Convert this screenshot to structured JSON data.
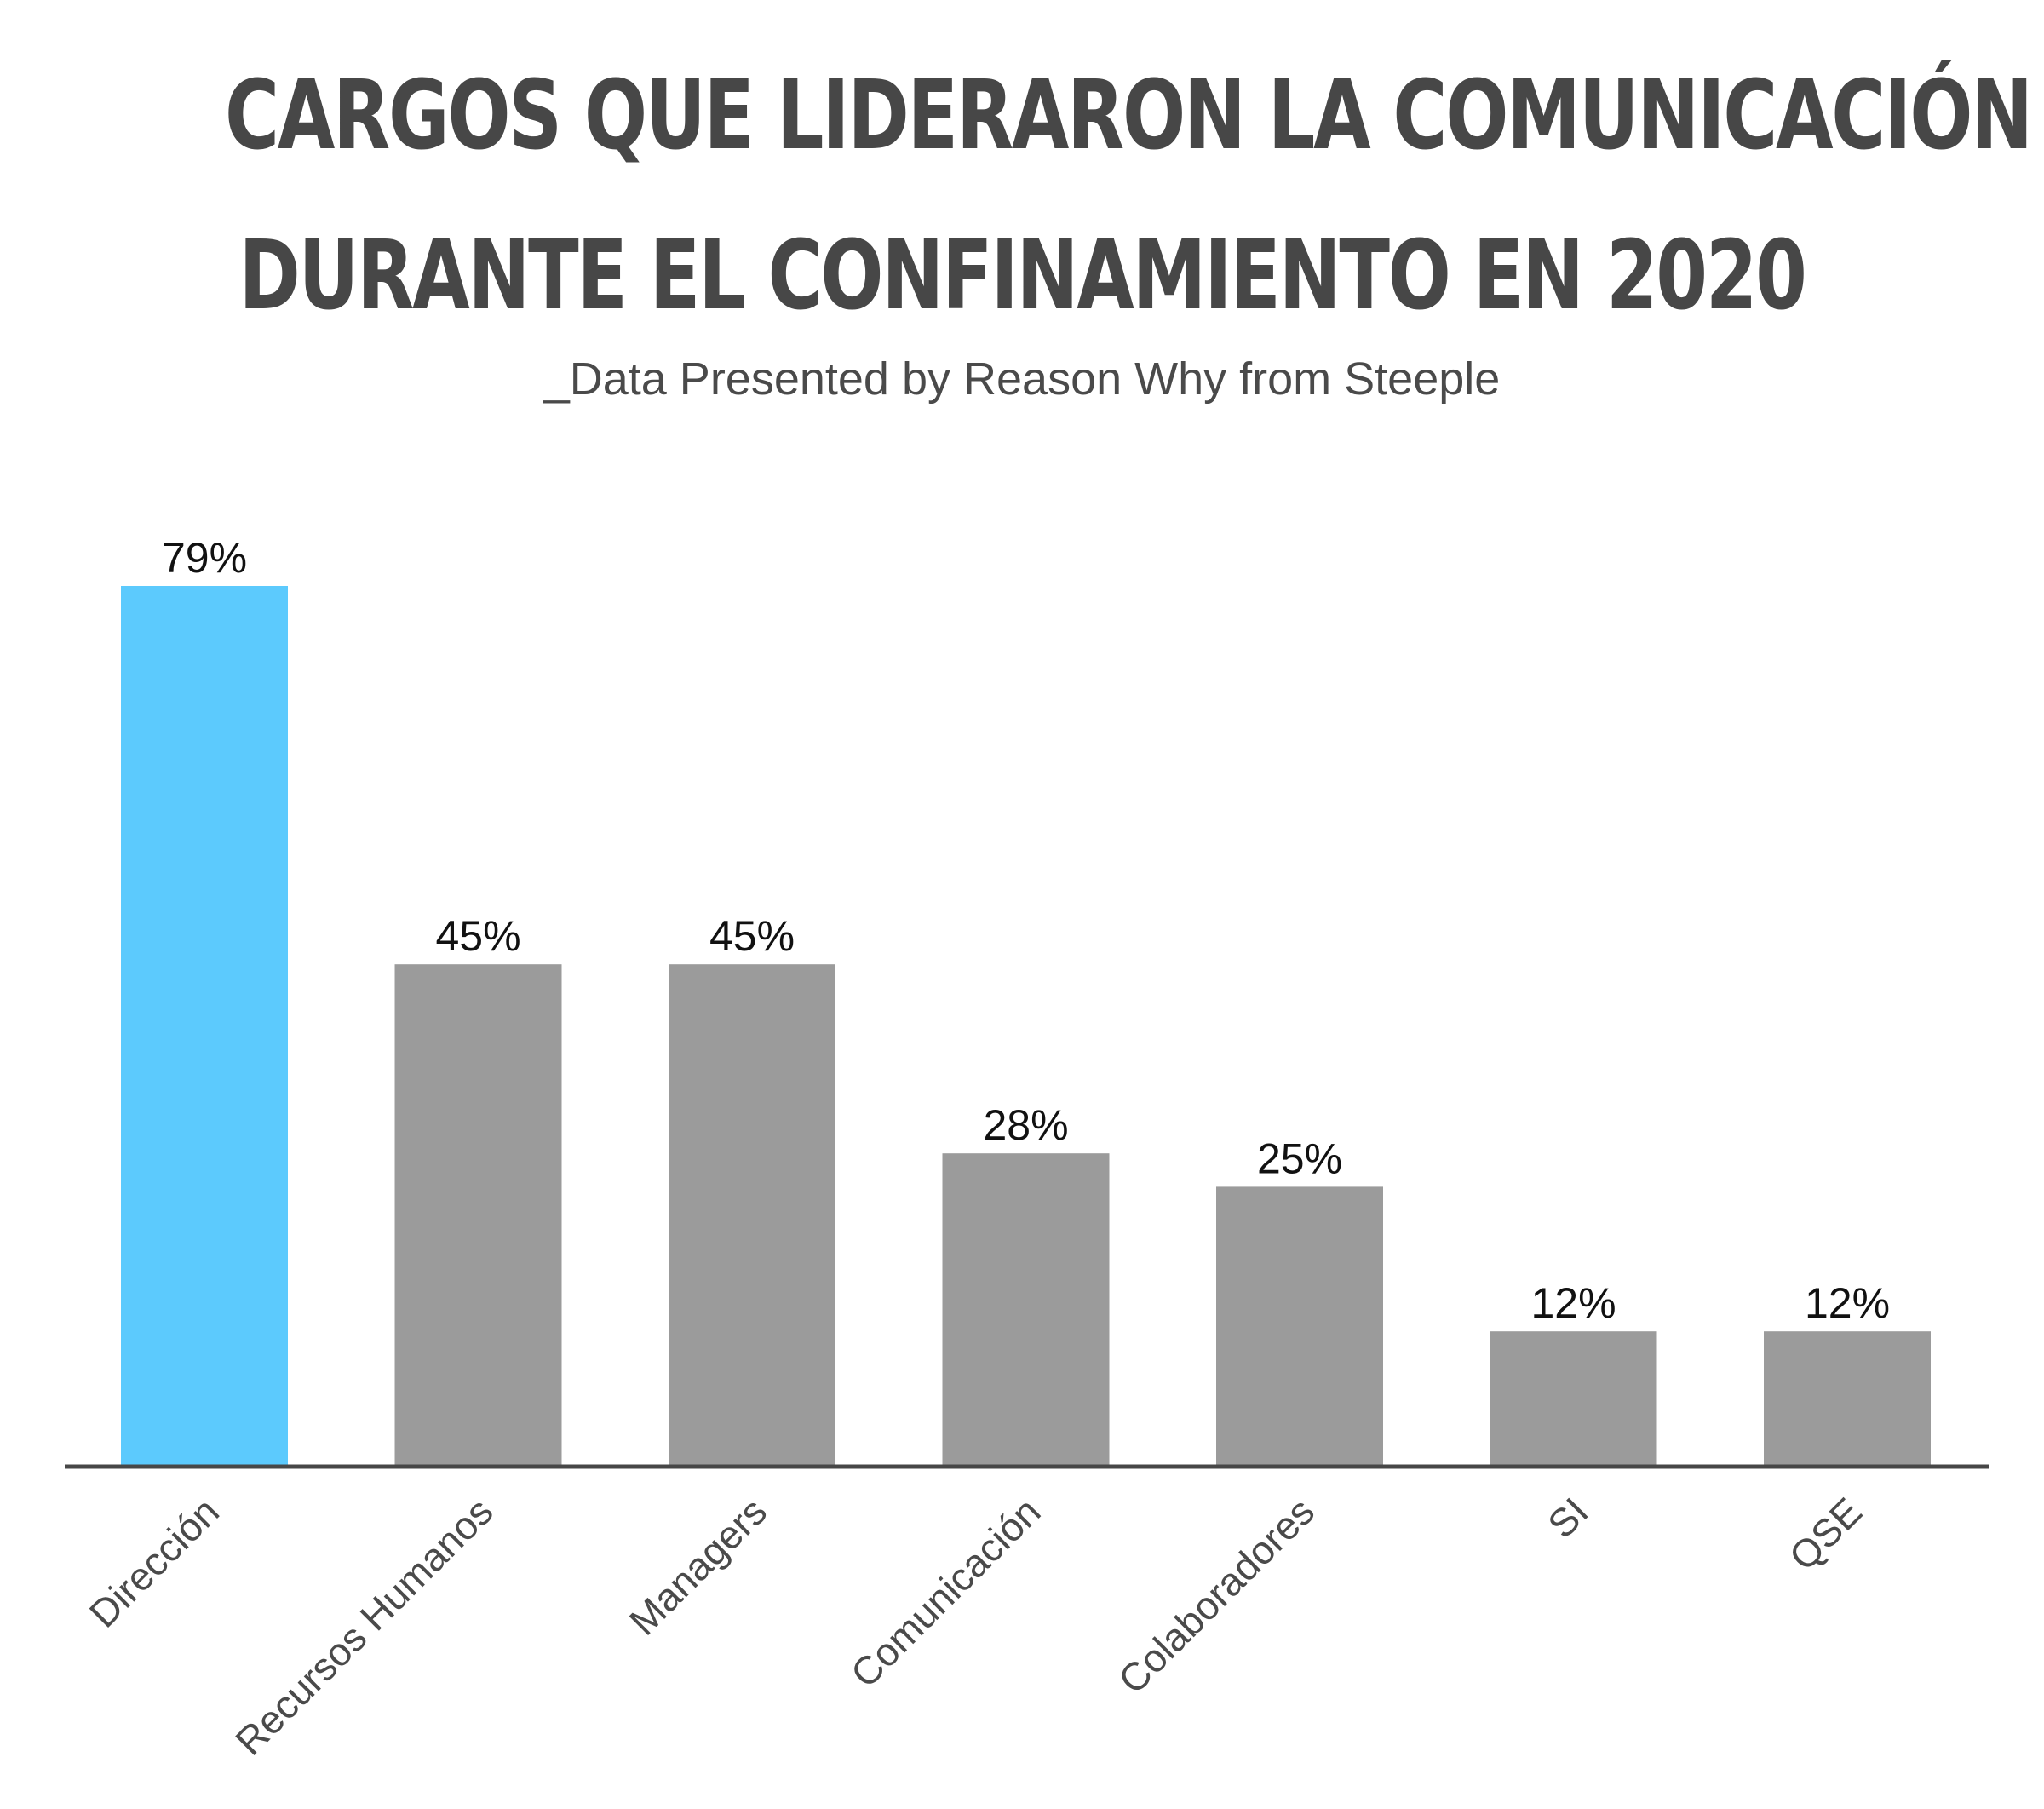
{
  "header": {
    "title_line_1": "CARGOS QUE LIDERARON LA COMUNICACIÓN",
    "title_line_2": "DURANTE EL CONFINAMIENTO EN 2020",
    "subtitle": "_Data Presented by Reason Why from Steeple"
  },
  "chart_data": {
    "type": "bar",
    "title": "CARGOS QUE LIDERARON LA COMUNICACIÓN DURANTE EL CONFINAMIENTO EN 2020",
    "subtitle": "_Data Presented by Reason Why from Steeple",
    "categories": [
      "Dirección",
      "Recursos Humanos",
      "Managers",
      "Comunicación",
      "Colaboradores",
      "SI",
      "QSE"
    ],
    "values": [
      79,
      45,
      45,
      28,
      25,
      12,
      12
    ],
    "data_labels": [
      "79%",
      "45%",
      "45%",
      "28%",
      "25%",
      "12%",
      "12%"
    ],
    "unit": "%",
    "ylim": [
      0,
      100
    ],
    "grid": false,
    "legend": "none",
    "highlight_index": 0,
    "colors": {
      "highlight": "#5ccafd",
      "bar": "#9b9b9b",
      "axis": "#474747",
      "title": "#474747",
      "subtitle": "#4a4a4a",
      "label": "#111111",
      "tick": "#4a4a4a"
    }
  }
}
